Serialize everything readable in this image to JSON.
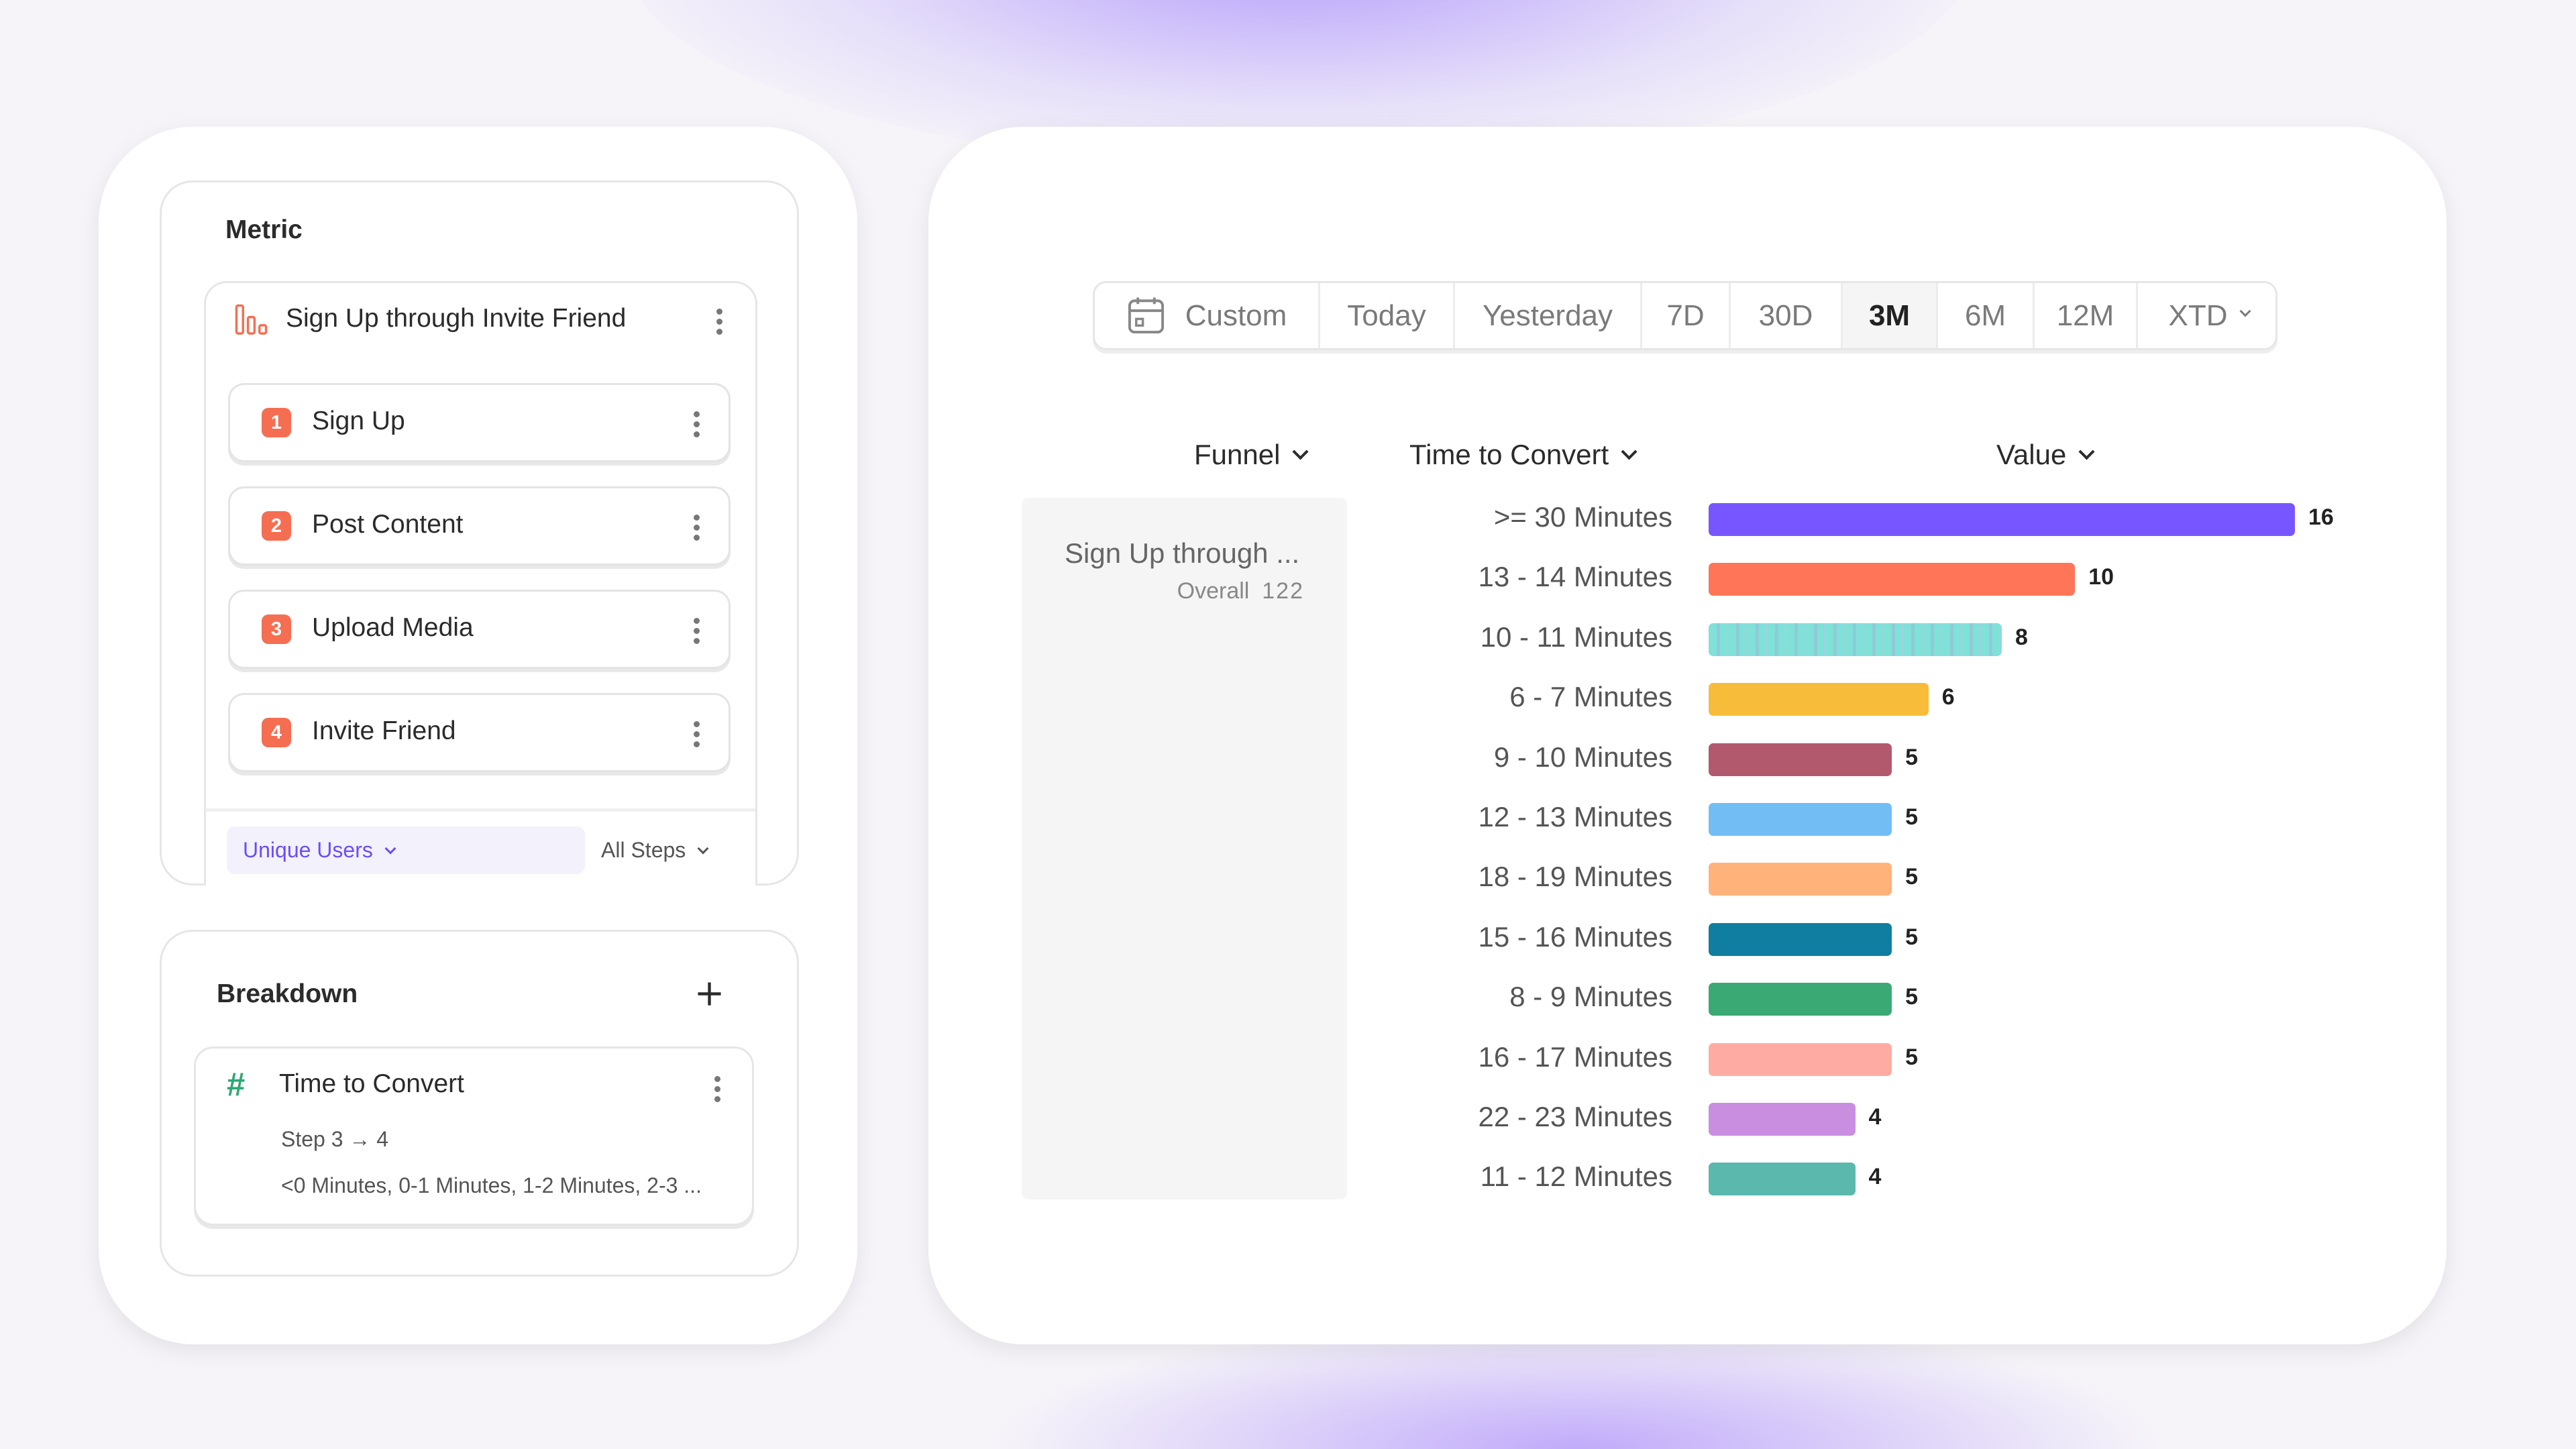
{
  "metric": {
    "heading": "Metric",
    "funnel_name": "Sign Up through Invite Friend",
    "funnel_icon": "funnel-bars-icon",
    "steps": [
      {
        "number": "1",
        "label": "Sign Up"
      },
      {
        "number": "2",
        "label": "Post Content"
      },
      {
        "number": "3",
        "label": "Upload Media"
      },
      {
        "number": "4",
        "label": "Invite Friend"
      }
    ],
    "measure": "Unique Users",
    "steps_filter": "All Steps",
    "accent": "#f56e52"
  },
  "breakdown": {
    "heading": "Breakdown",
    "add_icon": "plus-icon",
    "item": {
      "icon": "hash-icon",
      "title": "Time to Convert",
      "step": "Step 3 → 4",
      "values": "<0 Minutes, 0-1 Minutes, 1-2 Minutes, 2-3 ..."
    }
  },
  "date_range": {
    "icon": "calendar-icon",
    "options": [
      "Custom",
      "Today",
      "Yesterday",
      "7D",
      "30D",
      "3M",
      "6M",
      "12M",
      "XTD"
    ],
    "selected": "3M"
  },
  "table": {
    "columns": {
      "funnel": "Funnel",
      "breakdown": "Time to Convert",
      "value": "Value"
    },
    "funnel_cell": {
      "name": "Sign Up through ...",
      "overall_label": "Overall",
      "overall_value": "122"
    }
  },
  "chart_data": {
    "type": "bar",
    "orientation": "horizontal",
    "categories": [
      ">= 30 Minutes",
      "13 - 14 Minutes",
      "10 - 11 Minutes",
      "6 - 7 Minutes",
      "9 - 10 Minutes",
      "12 - 13 Minutes",
      "18 - 19 Minutes",
      "15 - 16 Minutes",
      "8 - 9 Minutes",
      "16 - 17 Minutes",
      "22 - 23 Minutes",
      "11 - 12 Minutes"
    ],
    "values": [
      16,
      10,
      8,
      6,
      5,
      5,
      5,
      5,
      5,
      5,
      4,
      4
    ],
    "colors": [
      "#7856ff",
      "#ff7557",
      "#80e1d9",
      "#f8bc3b",
      "#b2596e",
      "#72bef4",
      "#ffb27a",
      "#0f7ea0",
      "#3ba974",
      "#feaca3",
      "#c98ee0",
      "#5ab8ad"
    ],
    "xlim": [
      0,
      16
    ],
    "grid": false
  }
}
